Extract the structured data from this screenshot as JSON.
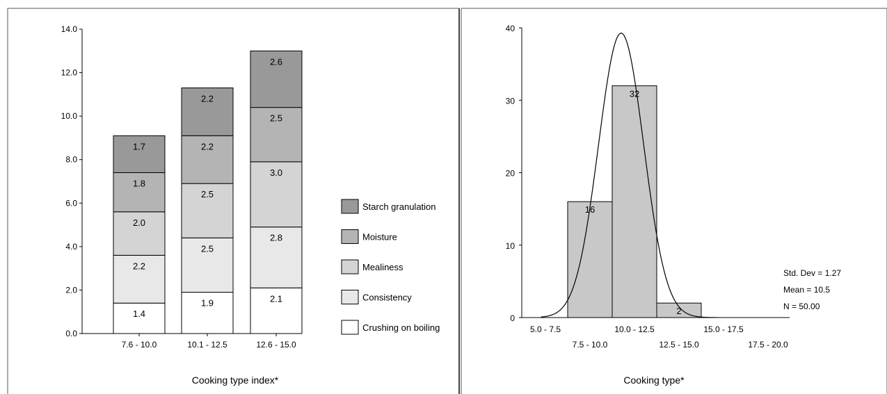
{
  "chart_data": [
    {
      "type": "bar",
      "stacked": true,
      "categories": [
        "7.6 - 10.0",
        "10.1 - 12.5",
        "12.6 - 15.0"
      ],
      "series": [
        {
          "name": "Crushing on boiling",
          "values": [
            1.4,
            1.9,
            2.1
          ],
          "labels": [
            "1.4",
            "1.9",
            "2.1"
          ],
          "color": "#ffffff"
        },
        {
          "name": "Consistency",
          "values": [
            2.2,
            2.5,
            2.8
          ],
          "labels": [
            "2.2",
            "2.5",
            "2.8"
          ],
          "color": "#e8e8e8"
        },
        {
          "name": "Mealiness",
          "values": [
            2.0,
            2.5,
            3.0
          ],
          "labels": [
            "2.0",
            "2.5",
            "3.0"
          ],
          "color": "#d4d4d4"
        },
        {
          "name": "Moisture",
          "values": [
            1.8,
            2.2,
            2.5
          ],
          "labels": [
            "1.8",
            "2.2",
            "2.5"
          ],
          "color": "#b4b4b4"
        },
        {
          "name": "Starch granulation",
          "values": [
            1.7,
            2.2,
            2.6
          ],
          "labels": [
            "1.7",
            "2.2",
            "2.6"
          ],
          "color": "#999999"
        }
      ],
      "legend_order": [
        "Starch granulation",
        "Moisture",
        "Mealiness",
        "Consistency",
        "Crushing on boiling"
      ],
      "legend_position": "right",
      "xlabel": "Cooking type index*",
      "ylabel": "",
      "ylim": [
        0,
        14
      ],
      "yticks": [
        "0.0",
        "2.0",
        "4.0",
        "6.0",
        "8.0",
        "10.0",
        "12.0",
        "14.0"
      ],
      "grid": false
    },
    {
      "type": "bar",
      "subtype": "histogram",
      "categories": [
        "5.0 - 7.5",
        "7.5 - 10.0",
        "10.0 - 12.5",
        "12.5 - 15.0",
        "15.0 - 17.5",
        "17.5 - 20.0"
      ],
      "bins": [
        {
          "from": 7.5,
          "to": 10.0,
          "count": 16,
          "label": "16"
        },
        {
          "from": 10.0,
          "to": 12.5,
          "count": 32,
          "label": "32"
        },
        {
          "from": 12.5,
          "to": 15.0,
          "count": 2,
          "label": "2"
        }
      ],
      "normal_curve": {
        "mean": 10.5,
        "std": 1.27,
        "n": 50,
        "bin_width": 2.5
      },
      "stats": [
        "Std. Dev = 1.27",
        "Mean = 10.5",
        "N = 50.00"
      ],
      "xlabel": "Cooking type*",
      "ylabel": "",
      "ylim": [
        0,
        40
      ],
      "yticks": [
        "0",
        "10",
        "20",
        "30",
        "40"
      ],
      "bar_color": "#c8c8c8",
      "grid": false
    }
  ]
}
